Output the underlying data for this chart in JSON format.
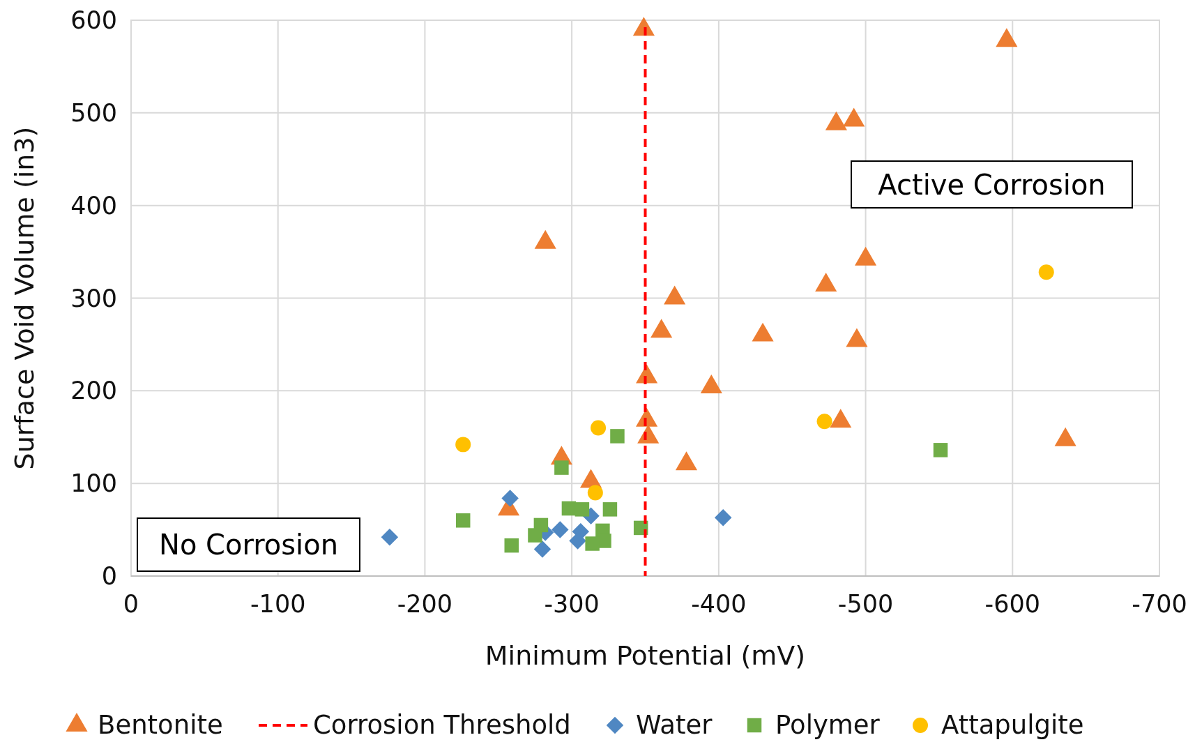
{
  "chart_data": {
    "type": "scatter",
    "xlabel": "Minimum Potential (mV)",
    "ylabel": "Surface Void Volume (in3)",
    "xlim": [
      0,
      -700
    ],
    "xticks": [
      0,
      -100,
      -200,
      -300,
      -400,
      -500,
      -600,
      -700
    ],
    "ylim": [
      0,
      600
    ],
    "yticks": [
      0,
      100,
      200,
      300,
      400,
      500,
      600
    ],
    "grid": true,
    "legend": "bottom",
    "annotations": [
      "Active Corrosion",
      "No Corrosion"
    ],
    "ref_lines": [
      {
        "axis": "x",
        "value": -350,
        "label": "Corrosion Threshold",
        "color": "#ff0000",
        "line_style": "dashed"
      }
    ],
    "series": [
      {
        "name": "Bentonite",
        "color": "#ed7d31",
        "marker": "triangle",
        "x": [
          -349,
          -596,
          -480,
          -492,
          -282,
          -500,
          -473,
          -370,
          -361,
          -430,
          -494,
          -351,
          -395,
          -351,
          -483,
          -352,
          -636,
          -378,
          -293,
          -313,
          -257
        ],
        "values": [
          590,
          578,
          488,
          492,
          360,
          342,
          314,
          300,
          264,
          260,
          254,
          215,
          204,
          168,
          167,
          150,
          147,
          121,
          127,
          102,
          72
        ]
      },
      {
        "name": "Water",
        "color": "#4f87c2",
        "marker": "diamond",
        "x": [
          -176,
          -258,
          -280,
          -282,
          -292,
          -306,
          -304,
          -313,
          -403
        ],
        "values": [
          42,
          84,
          29,
          47,
          50,
          48,
          38,
          65,
          63
        ]
      },
      {
        "name": "Polymer",
        "color": "#70ad47",
        "marker": "square",
        "x": [
          -226,
          -259,
          -279,
          -275,
          -298,
          -307,
          -326,
          -321,
          -322,
          -314,
          -347,
          -293,
          -331,
          -551
        ],
        "values": [
          60,
          33,
          55,
          44,
          73,
          72,
          72,
          49,
          38,
          35,
          52,
          117,
          151,
          136
        ]
      },
      {
        "name": "Attapulgite",
        "color": "#ffc000",
        "marker": "circle",
        "x": [
          -226,
          -318,
          -316,
          -472,
          -623
        ],
        "values": [
          142,
          160,
          90,
          167,
          328
        ]
      }
    ]
  }
}
